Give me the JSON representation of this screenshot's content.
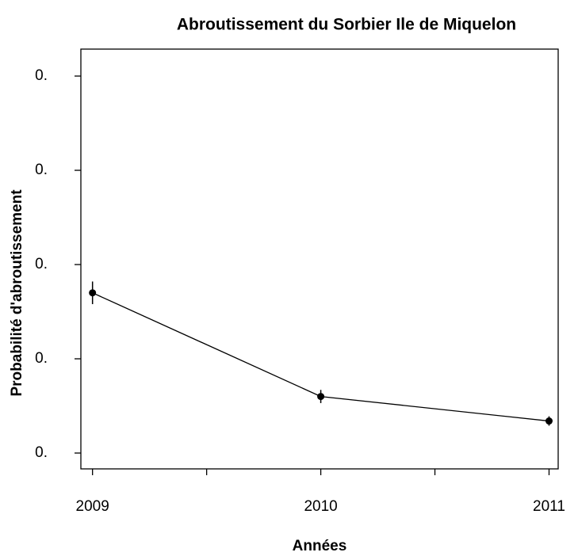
{
  "chart_data": {
    "type": "line",
    "title": "Abroutissement du Sorbier Ile de Miquelon",
    "x_label": "Années",
    "y_label": "Probabilité d'abroutissement",
    "x": [
      2009,
      2010,
      2011
    ],
    "series": [
      {
        "color": "#000000",
        "values": [
          0.27,
          0.16,
          0.134
        ],
        "errors": [
          0.012,
          0.007,
          0.005
        ]
      }
    ],
    "xlim": [
      2008.949,
      2011.04
    ],
    "xticks": [
      2009,
      2010,
      2011
    ],
    "xminor_ticks": [
      2009.5,
      2010.5
    ],
    "ylim": [
      0.0832,
      0.5286
    ],
    "yticks": [
      {
        "value": 0.1,
        "label": "0."
      },
      {
        "value": 0.2,
        "label": "0."
      },
      {
        "value": 0.3,
        "label": "0."
      },
      {
        "value": 0.4,
        "label": "0."
      },
      {
        "value": 0.5,
        "label": "0."
      }
    ]
  }
}
